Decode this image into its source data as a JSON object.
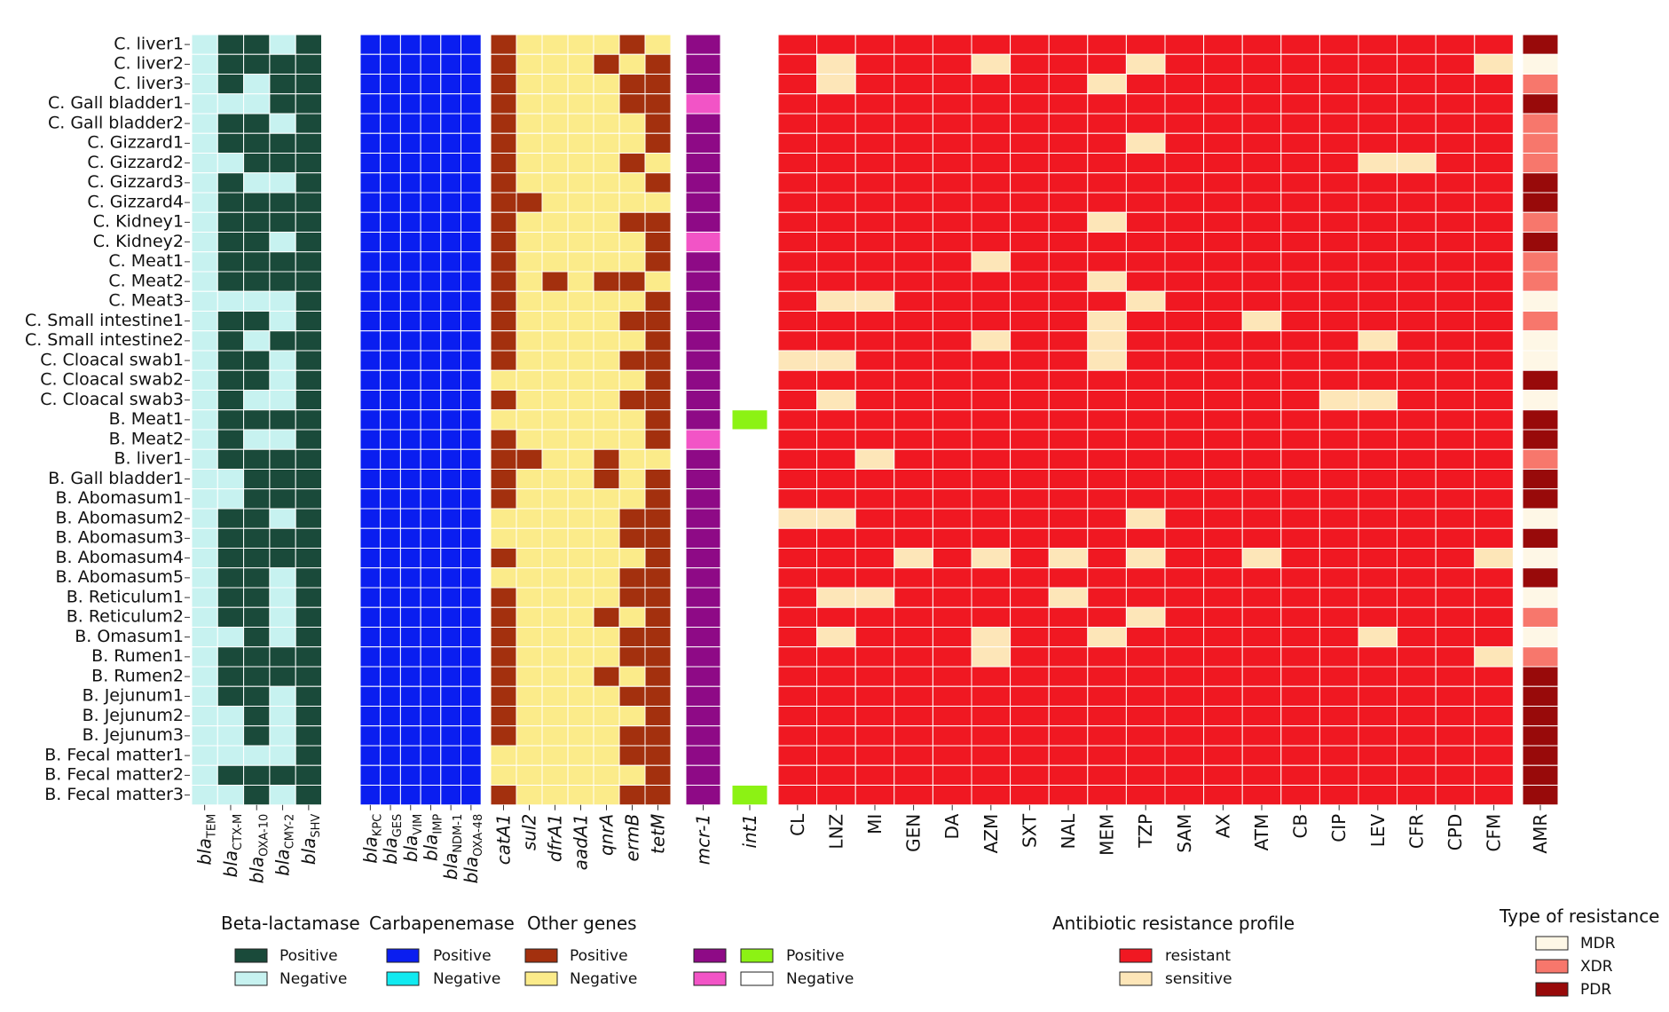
{
  "chart_data": {
    "type": "heatmap",
    "rows": [
      "C. liver1",
      "C. liver2",
      "C. liver3",
      "C. Gall bladder1",
      "C. Gall bladder2",
      "C. Gizzard1",
      "C. Gizzard2",
      "C. Gizzard3",
      "C. Gizzard4",
      "C. Kidney1",
      "C. Kidney2",
      "C. Meat1",
      "C. Meat2",
      "C. Meat3",
      "C. Small intestine1",
      "C. Small intestine2",
      "C. Cloacal swab1",
      "C. Cloacal swab2",
      "C. Cloacal swab3",
      "B. Meat1",
      "B. Meat2",
      "B. liver1",
      "B. Gall bladder1",
      "B. Abomasum1",
      "B. Abomasum2",
      "B. Abomasum3",
      "B. Abomasum4",
      "B. Abomasum5",
      "B. Reticulum1",
      "B. Reticulum2",
      "B. Omasum1",
      "B. Rumen1",
      "B. Rumen2",
      "B. Jejunum1",
      "B. Jejunum2",
      "B. Jejunum3",
      "B. Fecal matter1",
      "B. Fecal matter2",
      "B. Fecal matter3"
    ],
    "groups": [
      {
        "id": "beta",
        "columns": [
          {
            "base": "bla",
            "sub": "TEM"
          },
          {
            "base": "bla",
            "sub": "CTX-M"
          },
          {
            "base": "bla",
            "sub": "OXA-10"
          },
          {
            "base": "bla",
            "sub": "CMY-2"
          },
          {
            "base": "bla",
            "sub": "SHV"
          }
        ],
        "legend_title": "Beta-lactamase",
        "states": [
          {
            "label": "Positive",
            "color": "#1a4a3a"
          },
          {
            "label": "Negative",
            "color": "#c7f2f0"
          }
        ],
        "values": [
          "10010",
          "10000",
          "10100",
          "11100",
          "10010",
          "10000",
          "11000",
          "10110",
          "10000",
          "10000",
          "10010",
          "10000",
          "10000",
          "11110",
          "10010",
          "10100",
          "10010",
          "10010",
          "10110",
          "10000",
          "10110",
          "10000",
          "11000",
          "11000",
          "10010",
          "10000",
          "10000",
          "10010",
          "10010",
          "10010",
          "11010",
          "10000",
          "10000",
          "10010",
          "11010",
          "11010",
          "11110",
          "10000",
          "11010"
        ]
      },
      {
        "id": "carba",
        "columns": [
          {
            "base": "bla",
            "sub": "KPC"
          },
          {
            "base": "bla",
            "sub": "GES"
          },
          {
            "base": "bla",
            "sub": "VIM"
          },
          {
            "base": "bla",
            "sub": "IMP"
          },
          {
            "base": "bla",
            "sub": "NDM-1"
          },
          {
            "base": "bla",
            "sub": "OXA-48"
          }
        ],
        "legend_title": "Carbapenemase",
        "states": [
          {
            "label": "Positive",
            "color": "#0a1ef0"
          },
          {
            "label": "Negative",
            "color": "#11eaf0"
          }
        ],
        "values": [
          "000000",
          "000000",
          "000000",
          "000000",
          "000000",
          "000000",
          "000000",
          "000000",
          "000000",
          "000000",
          "000000",
          "000000",
          "000000",
          "000000",
          "000000",
          "000000",
          "000000",
          "000000",
          "000000",
          "000000",
          "000000",
          "000000",
          "000000",
          "000000",
          "000000",
          "000000",
          "000000",
          "000000",
          "000000",
          "000000",
          "000000",
          "000000",
          "000000",
          "000000",
          "000000",
          "000000",
          "000000",
          "000000",
          "000000"
        ]
      },
      {
        "id": "other",
        "columns": [
          {
            "base": "catA1",
            "sub": ""
          },
          {
            "base": "sul2",
            "sub": ""
          },
          {
            "base": "dfrA1",
            "sub": ""
          },
          {
            "base": "aadA1",
            "sub": ""
          },
          {
            "base": "qnrA",
            "sub": ""
          },
          {
            "base": "ermB",
            "sub": ""
          },
          {
            "base": "tetM",
            "sub": ""
          }
        ],
        "legend_title": "Other genes",
        "states": [
          {
            "label": "Positive",
            "color": "#a3300e"
          },
          {
            "label": "Negative",
            "color": "#fbeb8a"
          }
        ],
        "values": [
          "0111101",
          "0111010",
          "0111100",
          "0111100",
          "0111110",
          "0111110",
          "0111101",
          "0111110",
          "0011111",
          "0111100",
          "0111110",
          "0111110",
          "0101001",
          "0111110",
          "0111100",
          "0111110",
          "0111100",
          "1111110",
          "0111100",
          "1111110",
          "0111110",
          "0011011",
          "0111010",
          "0111110",
          "1111100",
          "1111100",
          "0111110",
          "1111100",
          "0111100",
          "0111010",
          "0111100",
          "0111100",
          "0111010",
          "0111100",
          "0111110",
          "0111100",
          "1111100",
          "1111110",
          "0111100"
        ]
      },
      {
        "id": "mcr",
        "columns": [
          {
            "base": "mcr-1",
            "sub": ""
          }
        ],
        "legend_title": "",
        "states": [
          {
            "label": "",
            "color": "#8e0a86"
          },
          {
            "label": "",
            "color": "#f254c6"
          }
        ],
        "values": [
          "0",
          "0",
          "0",
          "1",
          "0",
          "0",
          "0",
          "0",
          "0",
          "0",
          "1",
          "0",
          "0",
          "0",
          "0",
          "0",
          "0",
          "0",
          "0",
          "0",
          "1",
          "0",
          "0",
          "0",
          "0",
          "0",
          "0",
          "0",
          "0",
          "0",
          "0",
          "0",
          "0",
          "0",
          "0",
          "0",
          "0",
          "0",
          "0"
        ]
      },
      {
        "id": "int",
        "columns": [
          {
            "base": "int1",
            "sub": ""
          }
        ],
        "legend_title": "",
        "states": [
          {
            "label": "Positive",
            "color": "#8cf214"
          },
          {
            "label": "Negative",
            "color": "#ffffff"
          }
        ],
        "values": [
          "1",
          "1",
          "1",
          "1",
          "1",
          "1",
          "1",
          "1",
          "1",
          "1",
          "1",
          "1",
          "1",
          "1",
          "1",
          "1",
          "1",
          "1",
          "1",
          "0",
          "1",
          "1",
          "1",
          "1",
          "1",
          "1",
          "1",
          "1",
          "1",
          "1",
          "1",
          "1",
          "1",
          "1",
          "1",
          "1",
          "1",
          "1",
          "0"
        ]
      },
      {
        "id": "abr",
        "columns": [
          {
            "base": "CL",
            "sub": ""
          },
          {
            "base": "LNZ",
            "sub": ""
          },
          {
            "base": "MI",
            "sub": ""
          },
          {
            "base": "GEN",
            "sub": ""
          },
          {
            "base": "DA",
            "sub": ""
          },
          {
            "base": "AZM",
            "sub": ""
          },
          {
            "base": "SXT",
            "sub": ""
          },
          {
            "base": "NAL",
            "sub": ""
          },
          {
            "base": "MEM",
            "sub": ""
          },
          {
            "base": "TZP",
            "sub": ""
          },
          {
            "base": "SAM",
            "sub": ""
          },
          {
            "base": "AX",
            "sub": ""
          },
          {
            "base": "ATM",
            "sub": ""
          },
          {
            "base": "CB",
            "sub": ""
          },
          {
            "base": "CIP",
            "sub": ""
          },
          {
            "base": "LEV",
            "sub": ""
          },
          {
            "base": "CFR",
            "sub": ""
          },
          {
            "base": "CPD",
            "sub": ""
          },
          {
            "base": "CFM",
            "sub": ""
          }
        ],
        "legend_title": "Antibiotic resistance profile",
        "states": [
          {
            "label": "resistant",
            "color": "#f01822"
          },
          {
            "label": "sensitive",
            "color": "#fde6b8"
          }
        ],
        "values": [
          "0000000000000000000",
          "0100010001000000001",
          "0100000010000000000",
          "0000000000000000000",
          "0000000000000000000",
          "0000000001000000000",
          "0000000000000001100",
          "0000000000000000000",
          "0000000000000000000",
          "0000000010000000000",
          "0000000000000000000",
          "0000010000000000000",
          "0000000010000000000",
          "0110000001000000000",
          "0000000010001000000",
          "0000010010000001000",
          "1100000010000000000",
          "0000000000000000000",
          "0100000000000011000",
          "0000000000000000000",
          "0000000000000000000",
          "0010000000000000000",
          "0000000000000000000",
          "0000000000000000000",
          "1100000001000000000",
          "0000000000000000000",
          "0001010101001000001",
          "0000000000000000000",
          "0110000100000000000",
          "0000000001000000000",
          "0100010010000001000",
          "0000010000000000001",
          "0000000000000000000",
          "0000000000000000000",
          "0000000000000000000",
          "0000000000000000000",
          "0000000000000000000",
          "0000000000000000000",
          "0000000000000000000"
        ]
      },
      {
        "id": "amr",
        "columns": [
          {
            "base": "AMR",
            "sub": ""
          }
        ],
        "legend_title": "Type of resistance",
        "states": [
          {
            "label": "MDR",
            "color": "#fef7e6"
          },
          {
            "label": "XDR",
            "color": "#f7776c"
          },
          {
            "label": "PDR",
            "color": "#980a0a"
          }
        ],
        "values": [
          "2",
          "0",
          "1",
          "2",
          "1",
          "1",
          "1",
          "2",
          "2",
          "1",
          "2",
          "1",
          "1",
          "0",
          "1",
          "0",
          "0",
          "2",
          "0",
          "2",
          "2",
          "1",
          "2",
          "2",
          "0",
          "2",
          "0",
          "2",
          "0",
          "1",
          "0",
          "1",
          "2",
          "2",
          "2",
          "2",
          "2",
          "2",
          "2"
        ]
      }
    ]
  }
}
